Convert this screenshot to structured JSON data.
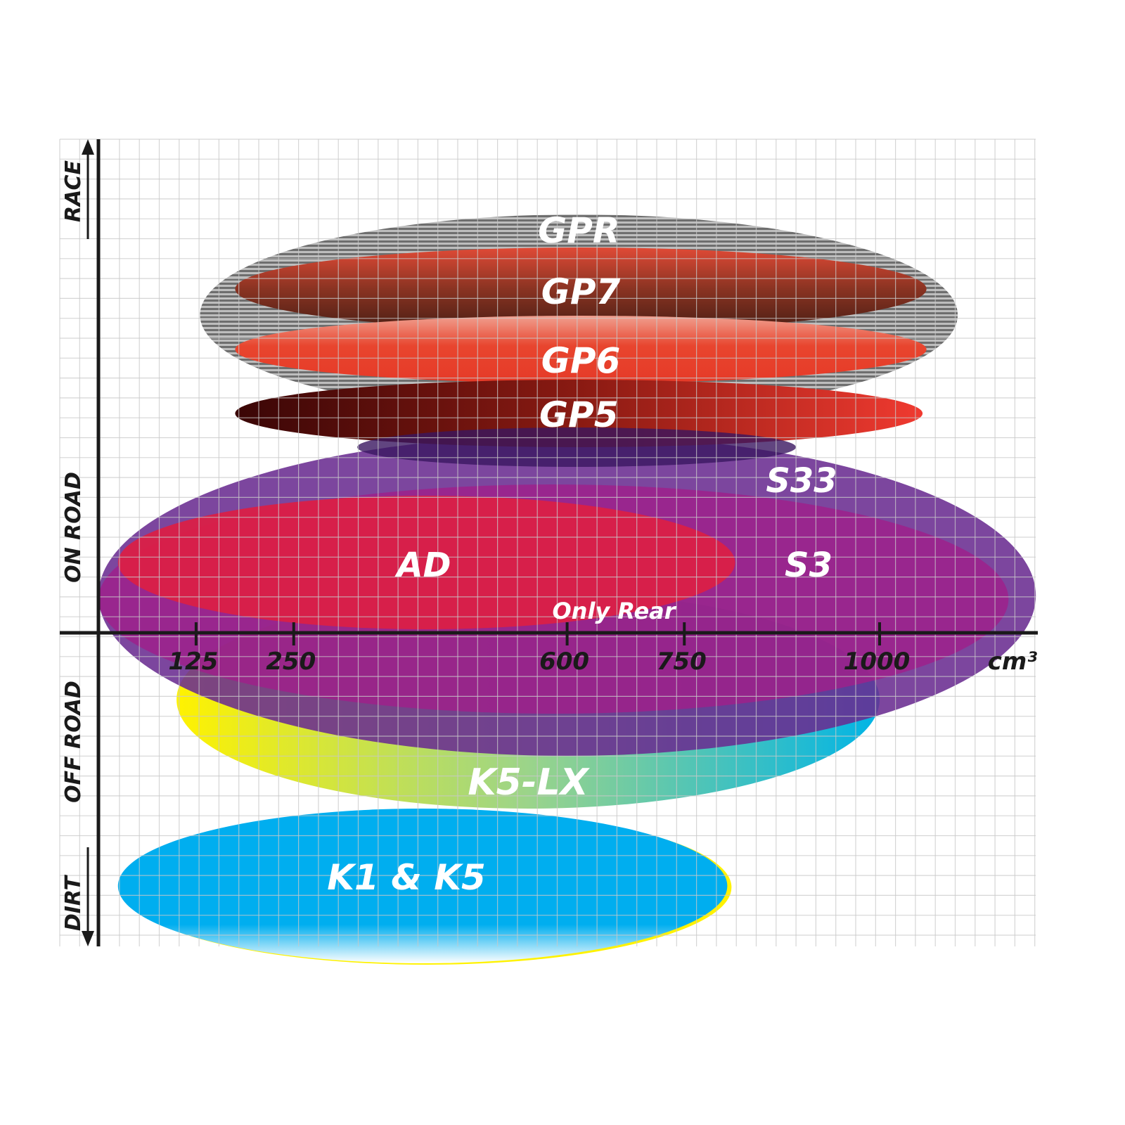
{
  "chart_data": {
    "type": "positioning-ellipses",
    "x_axis": {
      "unit_label": "cm³",
      "ticks": [
        125,
        250,
        600,
        750,
        1000
      ],
      "tick_labels": [
        "125",
        "250",
        "600",
        "750",
        "1000"
      ]
    },
    "y_axis": {
      "categories_top_to_bottom": [
        "RACE",
        "ON ROAD",
        "OFF ROAD",
        "DIRT"
      ]
    },
    "grid": true,
    "products": [
      {
        "name": "GPR",
        "cc_range": [
          130,
          1100
        ],
        "color": "#9a9a9a"
      },
      {
        "name": "GP7",
        "cc_range": [
          175,
          1060
        ],
        "color": "#8a2a1a"
      },
      {
        "name": "GP6",
        "cc_range": [
          175,
          1060
        ],
        "color": "#e8402a"
      },
      {
        "name": "GP5",
        "cc_range": [
          175,
          1055
        ],
        "color": "#7a1010"
      },
      {
        "name": "S33",
        "cc_range": [
          0,
          1200
        ],
        "color": "#6a2c91"
      },
      {
        "name": "S3",
        "cc_range": [
          0,
          1165
        ],
        "color": "#a0208a"
      },
      {
        "name": "AD",
        "cc_range": [
          25,
          815
        ],
        "color": "#dc1e44"
      },
      {
        "name": "K5-LX",
        "cc_range": [
          100,
          1000
        ],
        "color": "#00b4e0",
        "note": "Only Rear"
      },
      {
        "name": "K1 & K5",
        "cc_range": [
          25,
          805
        ],
        "color": "#00aeef"
      }
    ]
  }
}
